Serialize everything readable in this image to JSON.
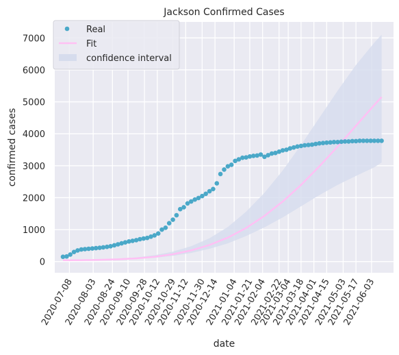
{
  "chart_data": {
    "type": "line",
    "title": "Jackson Confirmed Cases",
    "xlabel": "date",
    "ylabel": "confirmed cases",
    "x_axis_type": "date",
    "xlim": [
      "2020-06-22",
      "2021-06-27"
    ],
    "ylim": [
      -350,
      7500
    ],
    "y_ticks": [
      0,
      1000,
      2000,
      3000,
      4000,
      5000,
      6000,
      7000
    ],
    "x_ticks": [
      "2020-07-08",
      "2020-08-03",
      "2020-08-24",
      "2020-09-10",
      "2020-09-28",
      "2020-10-12",
      "2020-10-29",
      "2020-11-12",
      "2020-11-30",
      "2020-12-14",
      "2021-01-04",
      "2021-01-21",
      "2021-02-04",
      "2021-02-22",
      "2021-03-04",
      "2021-03-18",
      "2021-04-01",
      "2021-04-15",
      "2021-05-03",
      "2021-05-17",
      "2021-06-03"
    ],
    "grid": true,
    "legend_position": "top-left",
    "colors": {
      "background": "#eaeaf2",
      "grid": "#ffffff",
      "real": "#4aa8c8",
      "fit": "#ffc0f4",
      "band": "#d6dced"
    },
    "series": [
      {
        "name": "Real",
        "kind": "scatter",
        "x": [
          "2020-07-01",
          "2020-07-05",
          "2020-07-09",
          "2020-07-13",
          "2020-07-17",
          "2020-07-21",
          "2020-07-25",
          "2020-07-29",
          "2020-08-02",
          "2020-08-06",
          "2020-08-10",
          "2020-08-14",
          "2020-08-18",
          "2020-08-22",
          "2020-08-26",
          "2020-08-30",
          "2020-09-03",
          "2020-09-07",
          "2020-09-11",
          "2020-09-15",
          "2020-09-19",
          "2020-09-23",
          "2020-09-27",
          "2020-10-01",
          "2020-10-05",
          "2020-10-09",
          "2020-10-13",
          "2020-10-17",
          "2020-10-21",
          "2020-10-25",
          "2020-10-29",
          "2020-11-02",
          "2020-11-06",
          "2020-11-10",
          "2020-11-14",
          "2020-11-18",
          "2020-11-22",
          "2020-11-26",
          "2020-11-30",
          "2020-12-04",
          "2020-12-08",
          "2020-12-12",
          "2020-12-16",
          "2020-12-20",
          "2020-12-24",
          "2020-12-28",
          "2021-01-01",
          "2021-01-05",
          "2021-01-09",
          "2021-01-13",
          "2021-01-17",
          "2021-01-21",
          "2021-01-25",
          "2021-01-29",
          "2021-02-02",
          "2021-02-06",
          "2021-02-10",
          "2021-02-14",
          "2021-02-18",
          "2021-02-22",
          "2021-02-26",
          "2021-03-02",
          "2021-03-06",
          "2021-03-10",
          "2021-03-14",
          "2021-03-18",
          "2021-03-22",
          "2021-03-26",
          "2021-03-30",
          "2021-04-03",
          "2021-04-07",
          "2021-04-11",
          "2021-04-15",
          "2021-04-19",
          "2021-04-23",
          "2021-04-27",
          "2021-05-01",
          "2021-05-05",
          "2021-05-09",
          "2021-05-13",
          "2021-05-17",
          "2021-05-21",
          "2021-05-25",
          "2021-05-29",
          "2021-06-02",
          "2021-06-06",
          "2021-06-10",
          "2021-06-14"
        ],
        "y": [
          150,
          160,
          220,
          300,
          350,
          380,
          390,
          400,
          410,
          420,
          430,
          445,
          460,
          480,
          510,
          540,
          570,
          600,
          630,
          650,
          670,
          700,
          720,
          740,
          780,
          820,
          880,
          1000,
          1060,
          1200,
          1310,
          1450,
          1640,
          1700,
          1820,
          1880,
          1940,
          1990,
          2050,
          2120,
          2200,
          2270,
          2450,
          2740,
          2880,
          2980,
          3030,
          3150,
          3200,
          3250,
          3260,
          3290,
          3310,
          3320,
          3350,
          3280,
          3330,
          3380,
          3400,
          3440,
          3480,
          3500,
          3540,
          3570,
          3600,
          3620,
          3640,
          3650,
          3660,
          3680,
          3700,
          3710,
          3720,
          3730,
          3740,
          3740,
          3750,
          3760,
          3760,
          3770,
          3770,
          3780,
          3780,
          3780,
          3780,
          3780,
          3780,
          3780
        ]
      },
      {
        "name": "Fit",
        "kind": "line",
        "x": [
          "2020-07-01",
          "2020-07-21",
          "2020-08-10",
          "2020-08-30",
          "2020-09-19",
          "2020-10-09",
          "2020-10-29",
          "2020-11-18",
          "2020-12-08",
          "2020-12-28",
          "2021-01-17",
          "2021-02-06",
          "2021-02-26",
          "2021-03-18",
          "2021-04-07",
          "2021-04-27",
          "2021-05-17",
          "2021-06-06",
          "2021-06-14"
        ],
        "y": [
          40,
          45,
          55,
          70,
          100,
          150,
          230,
          350,
          520,
          750,
          1050,
          1430,
          1880,
          2400,
          2980,
          3600,
          4250,
          4900,
          5150
        ]
      },
      {
        "name": "confidence interval",
        "kind": "band",
        "x": [
          "2020-07-01",
          "2020-07-21",
          "2020-08-10",
          "2020-08-30",
          "2020-09-19",
          "2020-10-09",
          "2020-10-29",
          "2020-11-18",
          "2020-12-08",
          "2020-12-28",
          "2021-01-17",
          "2021-02-06",
          "2021-02-26",
          "2021-03-18",
          "2021-04-07",
          "2021-04-27",
          "2021-05-17",
          "2021-06-06",
          "2021-06-14"
        ],
        "y_lower": [
          30,
          35,
          45,
          60,
          85,
          120,
          180,
          270,
          400,
          570,
          800,
          1070,
          1380,
          1730,
          2080,
          2400,
          2680,
          2950,
          3100
        ],
        "y_upper": [
          50,
          55,
          70,
          95,
          130,
          200,
          310,
          480,
          730,
          1080,
          1560,
          2150,
          2850,
          3650,
          4500,
          5350,
          6150,
          6850,
          7100
        ]
      }
    ]
  }
}
